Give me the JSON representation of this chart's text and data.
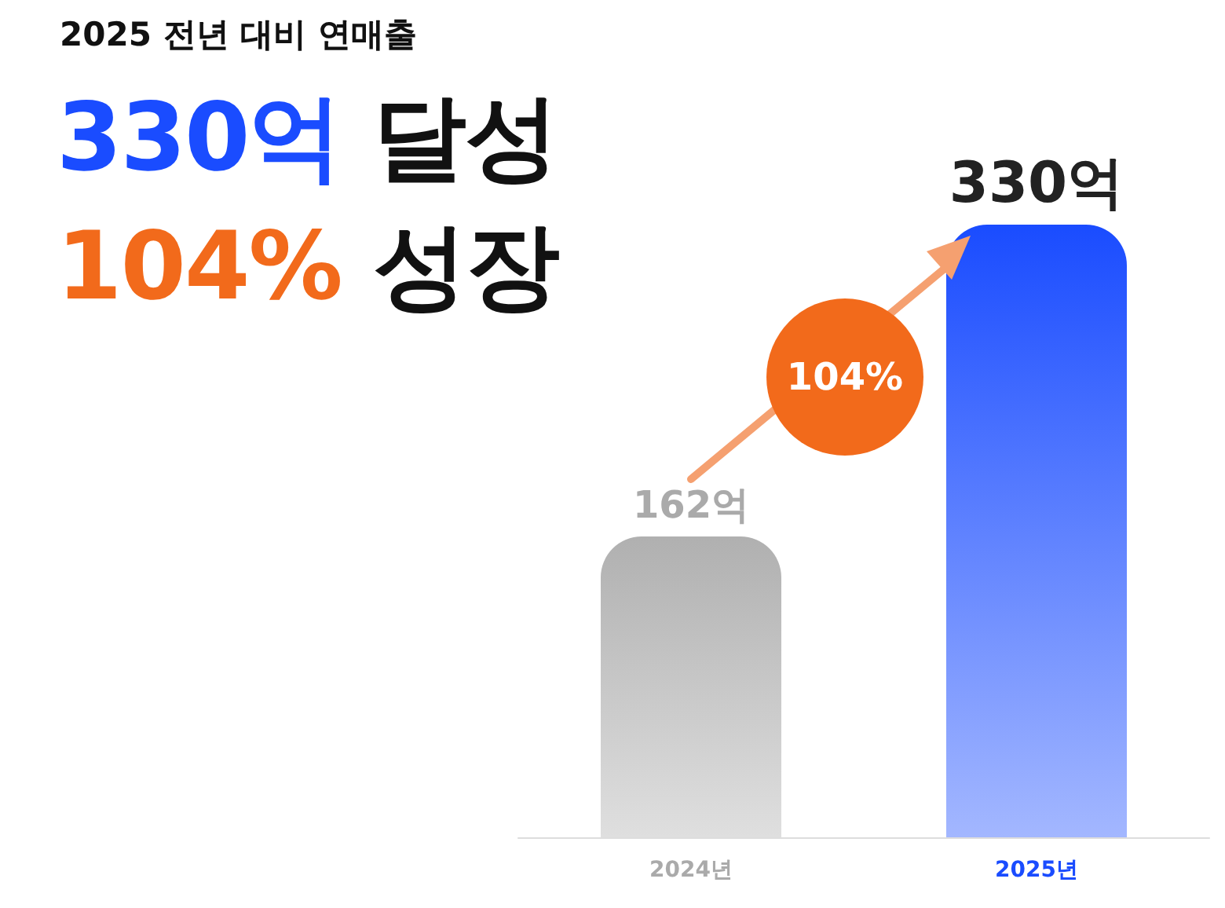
{
  "chart_data": {
    "type": "bar",
    "title": "2025 전년 대비 연매출",
    "annotations": [
      "330억 달성",
      "104% 성장",
      "104%"
    ],
    "categories": [
      "2024년",
      "2025년"
    ],
    "values": [
      162,
      330
    ],
    "colors": [
      "#b0b0b0",
      "#1a4cff"
    ],
    "value_labels": [
      "162억",
      "330억"
    ]
  }
}
